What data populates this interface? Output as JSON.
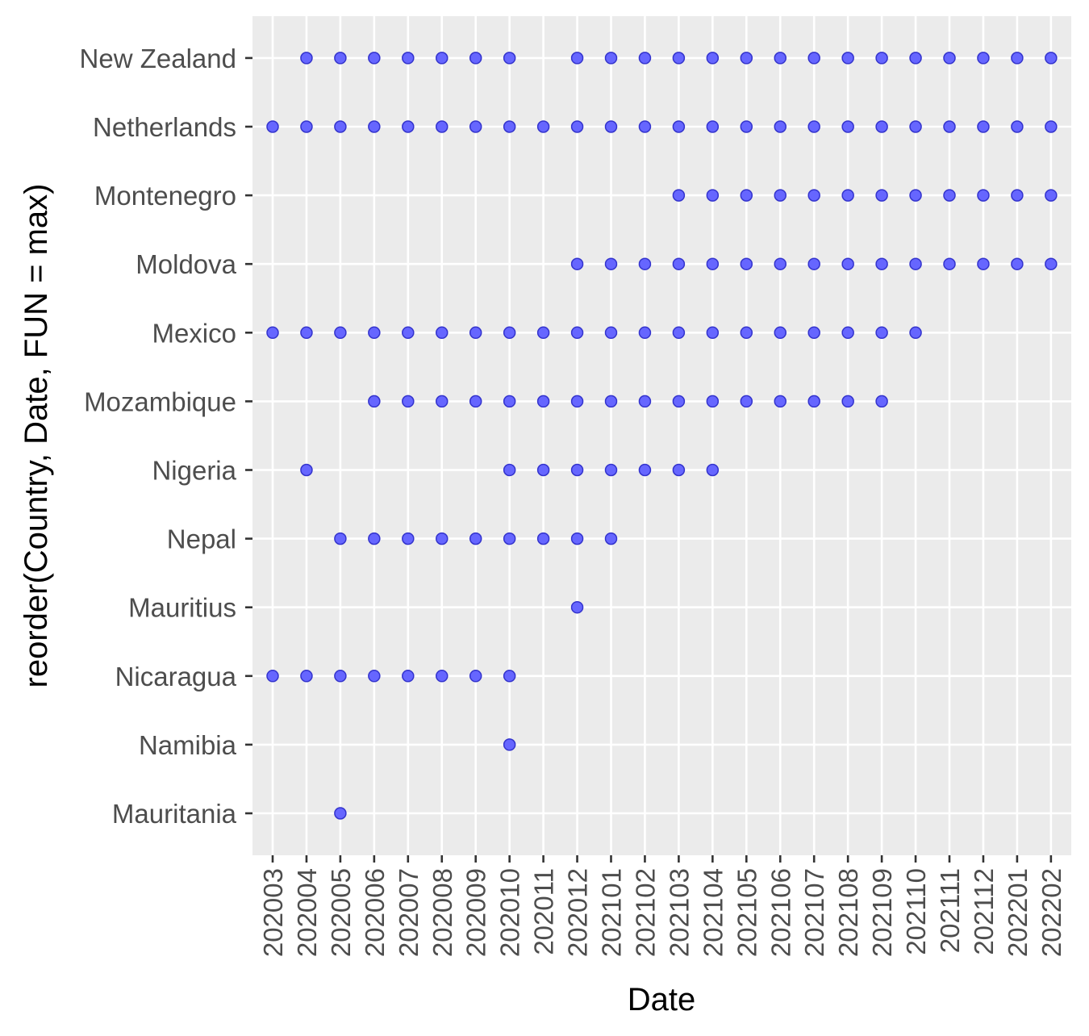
{
  "chart_data": {
    "type": "scatter",
    "xlabel": "Date",
    "ylabel": "reorder(Country, Date, FUN = max)",
    "x_categories": [
      "202003",
      "202004",
      "202005",
      "202006",
      "202007",
      "202008",
      "202009",
      "202010",
      "202011",
      "202012",
      "202101",
      "202102",
      "202103",
      "202104",
      "202105",
      "202106",
      "202107",
      "202108",
      "202109",
      "202110",
      "202111",
      "202112",
      "202201",
      "202202"
    ],
    "y_categories": [
      "Mauritania",
      "Namibia",
      "Nicaragua",
      "Mauritius",
      "Nepal",
      "Nigeria",
      "Mozambique",
      "Mexico",
      "Moldova",
      "Montenegro",
      "Netherlands",
      "New Zealand"
    ],
    "grid": true,
    "legend": "none",
    "point_color": "#6666ff",
    "point_stroke": "#3333cc",
    "panel_background": "#ebebeb",
    "points": [
      {
        "country": "New Zealand",
        "dates": [
          "202004",
          "202005",
          "202006",
          "202007",
          "202008",
          "202009",
          "202010",
          "202012",
          "202101",
          "202102",
          "202103",
          "202104",
          "202105",
          "202106",
          "202107",
          "202108",
          "202109",
          "202110",
          "202111",
          "202112",
          "202201",
          "202202"
        ]
      },
      {
        "country": "Netherlands",
        "dates": [
          "202003",
          "202004",
          "202005",
          "202006",
          "202007",
          "202008",
          "202009",
          "202010",
          "202011",
          "202012",
          "202101",
          "202102",
          "202103",
          "202104",
          "202105",
          "202106",
          "202107",
          "202108",
          "202109",
          "202110",
          "202111",
          "202112",
          "202201",
          "202202"
        ]
      },
      {
        "country": "Montenegro",
        "dates": [
          "202103",
          "202104",
          "202105",
          "202106",
          "202107",
          "202108",
          "202109",
          "202110",
          "202111",
          "202112",
          "202201",
          "202202"
        ]
      },
      {
        "country": "Moldova",
        "dates": [
          "202012",
          "202101",
          "202102",
          "202103",
          "202104",
          "202105",
          "202106",
          "202107",
          "202108",
          "202109",
          "202110",
          "202111",
          "202112",
          "202201",
          "202202"
        ]
      },
      {
        "country": "Mexico",
        "dates": [
          "202003",
          "202004",
          "202005",
          "202006",
          "202007",
          "202008",
          "202009",
          "202010",
          "202011",
          "202012",
          "202101",
          "202102",
          "202103",
          "202104",
          "202105",
          "202106",
          "202107",
          "202108",
          "202109",
          "202110"
        ]
      },
      {
        "country": "Mozambique",
        "dates": [
          "202006",
          "202007",
          "202008",
          "202009",
          "202010",
          "202011",
          "202012",
          "202101",
          "202102",
          "202103",
          "202104",
          "202105",
          "202106",
          "202107",
          "202108",
          "202109"
        ]
      },
      {
        "country": "Nigeria",
        "dates": [
          "202004",
          "202010",
          "202011",
          "202012",
          "202101",
          "202102",
          "202103",
          "202104"
        ]
      },
      {
        "country": "Nepal",
        "dates": [
          "202005",
          "202006",
          "202007",
          "202008",
          "202009",
          "202010",
          "202011",
          "202012",
          "202101"
        ]
      },
      {
        "country": "Mauritius",
        "dates": [
          "202012"
        ]
      },
      {
        "country": "Nicaragua",
        "dates": [
          "202003",
          "202004",
          "202005",
          "202006",
          "202007",
          "202008",
          "202009",
          "202010"
        ]
      },
      {
        "country": "Namibia",
        "dates": [
          "202010"
        ]
      },
      {
        "country": "Mauritania",
        "dates": [
          "202005"
        ]
      }
    ]
  }
}
